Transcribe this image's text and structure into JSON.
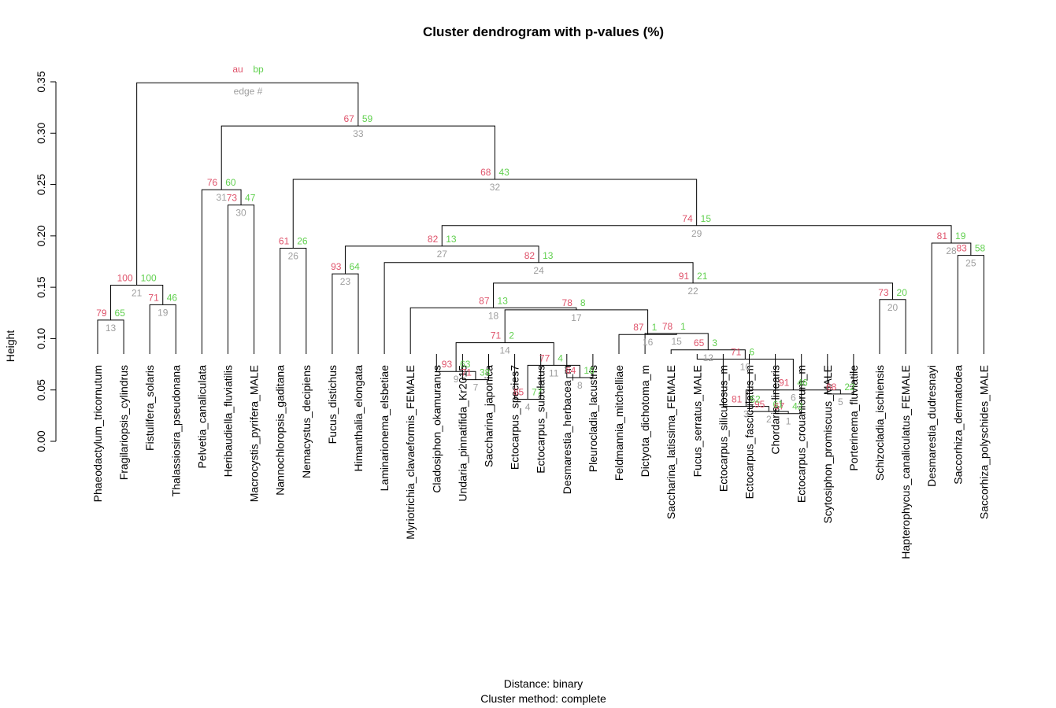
{
  "title": "Cluster dendrogram with p-values (%)",
  "ylabel": "Height",
  "subtitle_lines": [
    "Distance:  binary",
    "Cluster method: complete"
  ],
  "legend": {
    "au": "au",
    "bp": "bp",
    "edge": "edge #"
  },
  "colors": {
    "au": "#DF536B",
    "bp": "#61D04F",
    "edge": "#9E9E9E",
    "line": "#000000"
  },
  "chart_data": {
    "type": "dendrogram",
    "ylim": [
      0,
      0.35
    ],
    "yticks": [
      "0.00",
      "0.05",
      "0.10",
      "0.15",
      "0.20",
      "0.25",
      "0.30",
      "0.35"
    ],
    "leaves": [
      "Phaeodactylum_tricornutum",
      "Fragilariopsis_cylindrus",
      "Fistulifera_solaris",
      "Thalassiosira_pseudonana",
      "Pelvetia_canaliculata",
      "Heribaudiella_fluviatilis",
      "Macrocystis_pyrifera_MALE",
      "Nannochloropsis_gaditana",
      "Nemacystus_decipiens",
      "Fucus_distichus",
      "Himanthalia_elongata",
      "Laminarionema_elsbetiae",
      "Myriotrichia_clavaeformis_FEMALE",
      "Cladosiphon_okamuranus",
      "Undaria_pinnatifida_Kr2015",
      "Saccharina_japonica",
      "Ectocarpus_species7",
      "Ectocarpus_subulatus",
      "Desmarestia_herbacea_m",
      "Pleurocladia_lacustris",
      "Feldmannia_mitchelliae",
      "Dictyota_dichotoma_m",
      "Saccharina_latissima_FEMALE",
      "Fucus_serratus_MALE",
      "Ectocarpus_siliculosus_m",
      "Ectocarpus_fasciculatus_m",
      "Chordaria_linearis",
      "Ectocarpus_crouaniorum_m",
      "Scytosiphon_promiscuus_MALE",
      "Porterinema_fluviatile",
      "Schizocladia_ischiensis",
      "Hapterophycus_canaliculatus_FEMALE",
      "Desmarestia_dudresnayi",
      "Saccorhiza_dermatodea",
      "Saccorhiza_polyschides_MALE"
    ],
    "merges": [
      {
        "edge": "1",
        "a": 27,
        "b": 28,
        "height": 0.027,
        "au": "67",
        "bp": "42"
      },
      {
        "edge": "2",
        "a": 26,
        "b": -1,
        "height": 0.029,
        "au": "95",
        "bp": "61"
      },
      {
        "edge": "3",
        "a": 25,
        "b": -2,
        "height": 0.034,
        "au": "81",
        "bp": "52"
      },
      {
        "edge": "4",
        "a": 17,
        "b": 18,
        "height": 0.041,
        "au": "85",
        "bp": "77"
      },
      {
        "edge": "5",
        "a": 29,
        "b": 30,
        "height": 0.046,
        "au": "68",
        "bp": "22"
      },
      {
        "edge": "6",
        "a": -3,
        "b": -5,
        "height": 0.05,
        "au": "91",
        "bp": "46"
      },
      {
        "edge": "7",
        "a": 15,
        "b": 16,
        "height": 0.06,
        "au": "71",
        "bp": "38"
      },
      {
        "edge": "8",
        "a": 19,
        "b": 20,
        "height": 0.062,
        "au": "64",
        "bp": "16"
      },
      {
        "edge": "9",
        "a": 14,
        "b": -7,
        "height": 0.068,
        "au": "93",
        "bp": "63"
      },
      {
        "edge": "10",
        "a": 24,
        "b": -6,
        "height": 0.08,
        "au": "71",
        "bp": "6"
      },
      {
        "edge": "11",
        "a": -4,
        "b": -8,
        "height": 0.074,
        "au": "77",
        "bp": "4"
      },
      {
        "edge": "12",
        "a": 23,
        "b": -10,
        "height": 0.089,
        "au": "65",
        "bp": "3"
      },
      {
        "edge": "13",
        "a": 1,
        "b": 2,
        "height": 0.118,
        "au": "79",
        "bp": "65"
      },
      {
        "edge": "14",
        "a": -9,
        "b": -11,
        "height": 0.096,
        "au": "71",
        "bp": "2"
      },
      {
        "edge": "15",
        "a": 22,
        "b": -12,
        "height": 0.105,
        "au": "78",
        "bp": "1"
      },
      {
        "edge": "16",
        "a": 21,
        "b": -15,
        "height": 0.104,
        "au": "87",
        "bp": "1"
      },
      {
        "edge": "17",
        "a": -14,
        "b": -16,
        "height": 0.128,
        "au": "78",
        "bp": "8"
      },
      {
        "edge": "18",
        "a": 13,
        "b": -17,
        "height": 0.13,
        "au": "87",
        "bp": "13"
      },
      {
        "edge": "19",
        "a": 3,
        "b": 4,
        "height": 0.133,
        "au": "71",
        "bp": "46"
      },
      {
        "edge": "20",
        "a": 31,
        "b": 32,
        "height": 0.138,
        "au": "73",
        "bp": "20"
      },
      {
        "edge": "21",
        "a": -13,
        "b": -19,
        "height": 0.152,
        "au": "100",
        "bp": "100"
      },
      {
        "edge": "22",
        "a": -18,
        "b": -20,
        "height": 0.154,
        "au": "91",
        "bp": "21"
      },
      {
        "edge": "23",
        "a": 10,
        "b": 11,
        "height": 0.163,
        "au": "93",
        "bp": "64"
      },
      {
        "edge": "24",
        "a": 12,
        "b": -22,
        "height": 0.174,
        "au": "82",
        "bp": "13"
      },
      {
        "edge": "25",
        "a": 34,
        "b": 35,
        "height": 0.181,
        "au": "83",
        "bp": "58"
      },
      {
        "edge": "26",
        "a": 8,
        "b": 9,
        "height": 0.188,
        "au": "61",
        "bp": "26"
      },
      {
        "edge": "27",
        "a": -23,
        "b": -24,
        "height": 0.19,
        "au": "82",
        "bp": "13"
      },
      {
        "edge": "28",
        "a": 33,
        "b": -25,
        "height": 0.193,
        "au": "81",
        "bp": "19"
      },
      {
        "edge": "29",
        "a": -27,
        "b": -28,
        "height": 0.21,
        "au": "74",
        "bp": "15"
      },
      {
        "edge": "30",
        "a": 6,
        "b": 7,
        "height": 0.23,
        "au": "73",
        "bp": "47"
      },
      {
        "edge": "31",
        "a": 5,
        "b": -30,
        "height": 0.245,
        "au": "76",
        "bp": "60"
      },
      {
        "edge": "32",
        "a": -26,
        "b": -29,
        "height": 0.255,
        "au": "68",
        "bp": "43"
      },
      {
        "edge": "33",
        "a": -31,
        "b": -32,
        "height": 0.307,
        "au": "67",
        "bp": "59"
      },
      {
        "edge": "34",
        "a": -21,
        "b": -33,
        "height": 0.349,
        "au": "",
        "bp": ""
      }
    ]
  }
}
